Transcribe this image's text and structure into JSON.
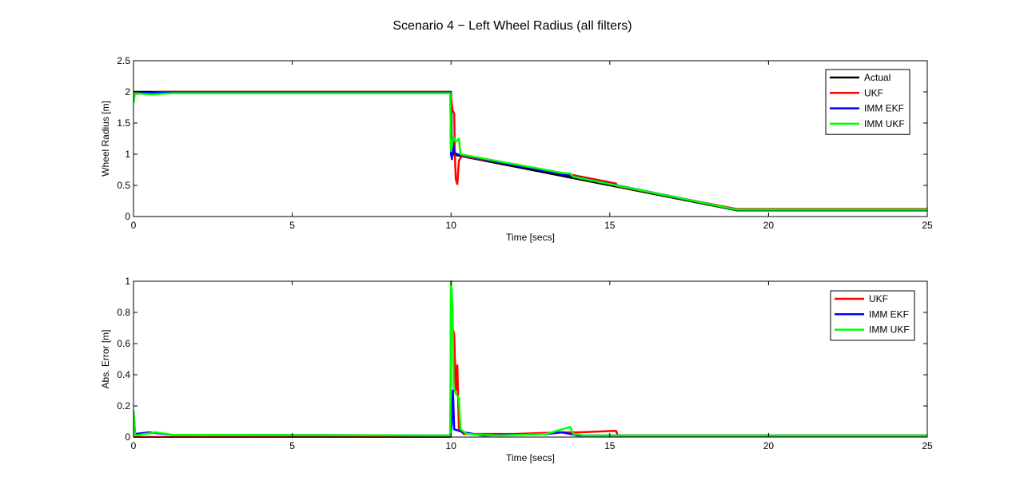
{
  "figure": {
    "title": "Scenario 4 − Left Wheel Radius (all filters)"
  },
  "colors": {
    "actual": "#000000",
    "ukf": "#ff0000",
    "imm_ekf": "#0000ff",
    "imm_ukf": "#00ff00"
  },
  "chart_data": [
    {
      "type": "line",
      "xlabel": "Time [secs]",
      "ylabel": "Wheel Radius [m]",
      "xlim": [
        0,
        25
      ],
      "ylim": [
        0,
        2.5
      ],
      "xticks": [
        "0",
        "5",
        "10",
        "15",
        "20",
        "25"
      ],
      "yticks": [
        "0",
        "0.5",
        "1",
        "1.5",
        "2",
        "2.5"
      ],
      "grid": false,
      "legend": "top-right",
      "series": [
        {
          "name": "Actual",
          "color": "#000000",
          "points": [
            [
              0,
              2.0
            ],
            [
              10.0,
              2.0
            ],
            [
              10.02,
              1.0
            ],
            [
              19.0,
              0.1
            ],
            [
              25,
              0.1
            ]
          ]
        },
        {
          "name": "UKF",
          "color": "#ff0000",
          "points": [
            [
              0,
              2.0
            ],
            [
              0.05,
              1.97
            ],
            [
              1.0,
              2.0
            ],
            [
              9.98,
              2.0
            ],
            [
              10.05,
              1.7
            ],
            [
              10.1,
              1.65
            ],
            [
              10.12,
              1.0
            ],
            [
              10.15,
              0.6
            ],
            [
              10.2,
              0.52
            ],
            [
              10.25,
              0.9
            ],
            [
              10.35,
              0.97
            ],
            [
              13.6,
              0.69
            ],
            [
              15.2,
              0.53
            ],
            [
              15.22,
              0.49
            ],
            [
              19.0,
              0.12
            ],
            [
              25,
              0.12
            ]
          ]
        },
        {
          "name": "IMM EKF",
          "color": "#0000ff",
          "points": [
            [
              0,
              2.0
            ],
            [
              0.05,
              1.98
            ],
            [
              1.0,
              1.99
            ],
            [
              9.98,
              1.99
            ],
            [
              10.0,
              1.0
            ],
            [
              10.03,
              0.92
            ],
            [
              10.06,
              1.22
            ],
            [
              10.1,
              1.02
            ],
            [
              10.2,
              1.0
            ],
            [
              13.7,
              0.66
            ],
            [
              19.0,
              0.11
            ],
            [
              25,
              0.11
            ]
          ]
        },
        {
          "name": "IMM UKF",
          "color": "#00ff00",
          "points": [
            [
              0,
              1.82
            ],
            [
              0.05,
              1.99
            ],
            [
              0.2,
              1.97
            ],
            [
              0.6,
              1.96
            ],
            [
              1.2,
              1.98
            ],
            [
              9.98,
              1.98
            ],
            [
              10.0,
              1.05
            ],
            [
              10.08,
              1.27
            ],
            [
              10.15,
              1.2
            ],
            [
              10.25,
              1.25
            ],
            [
              10.3,
              1.0
            ],
            [
              10.5,
              0.98
            ],
            [
              13.5,
              0.7
            ],
            [
              13.75,
              0.69
            ],
            [
              13.85,
              0.64
            ],
            [
              19.0,
              0.11
            ],
            [
              25,
              0.11
            ]
          ]
        }
      ]
    },
    {
      "type": "line",
      "xlabel": "Time [secs]",
      "ylabel": "Abs. Error [m]",
      "xlim": [
        0,
        25
      ],
      "ylim": [
        0,
        1
      ],
      "xticks": [
        "0",
        "5",
        "10",
        "15",
        "20",
        "25"
      ],
      "yticks": [
        "0",
        "0.2",
        "0.4",
        "0.6",
        "0.8",
        "1"
      ],
      "grid": false,
      "legend": "top-right",
      "series": [
        {
          "name": "UKF",
          "color": "#ff0000",
          "points": [
            [
              0,
              0.0
            ],
            [
              9.98,
              0.0
            ],
            [
              10.0,
              1.0
            ],
            [
              10.05,
              0.7
            ],
            [
              10.1,
              0.66
            ],
            [
              10.15,
              0.3
            ],
            [
              10.2,
              0.46
            ],
            [
              10.25,
              0.05
            ],
            [
              10.4,
              0.02
            ],
            [
              12.0,
              0.02
            ],
            [
              13.5,
              0.03
            ],
            [
              13.7,
              0.03
            ],
            [
              14.0,
              0.03
            ],
            [
              15.2,
              0.04
            ],
            [
              15.25,
              0.01
            ],
            [
              25,
              0.01
            ]
          ]
        },
        {
          "name": "IMM EKF",
          "color": "#0000ff",
          "points": [
            [
              0,
              0.17
            ],
            [
              0.05,
              0.02
            ],
            [
              0.5,
              0.03
            ],
            [
              1.2,
              0.015
            ],
            [
              9.98,
              0.01
            ],
            [
              10.02,
              0.08
            ],
            [
              10.06,
              0.3
            ],
            [
              10.1,
              0.05
            ],
            [
              10.4,
              0.03
            ],
            [
              11.0,
              0.01
            ],
            [
              13.0,
              0.02
            ],
            [
              13.5,
              0.03
            ],
            [
              14.0,
              0.01
            ],
            [
              25,
              0.01
            ]
          ]
        },
        {
          "name": "IMM UKF",
          "color": "#00ff00",
          "points": [
            [
              0,
              0.17
            ],
            [
              0.05,
              0.01
            ],
            [
              0.7,
              0.03
            ],
            [
              1.2,
              0.015
            ],
            [
              9.98,
              0.01
            ],
            [
              10.0,
              1.0
            ],
            [
              10.05,
              0.82
            ],
            [
              10.08,
              0.32
            ],
            [
              10.15,
              0.28
            ],
            [
              10.25,
              0.25
            ],
            [
              10.3,
              0.05
            ],
            [
              10.5,
              0.02
            ],
            [
              11.5,
              0.01
            ],
            [
              13.0,
              0.02
            ],
            [
              13.5,
              0.05
            ],
            [
              13.75,
              0.065
            ],
            [
              13.85,
              0.02
            ],
            [
              14.2,
              0.01
            ],
            [
              25,
              0.01
            ]
          ]
        }
      ]
    }
  ]
}
